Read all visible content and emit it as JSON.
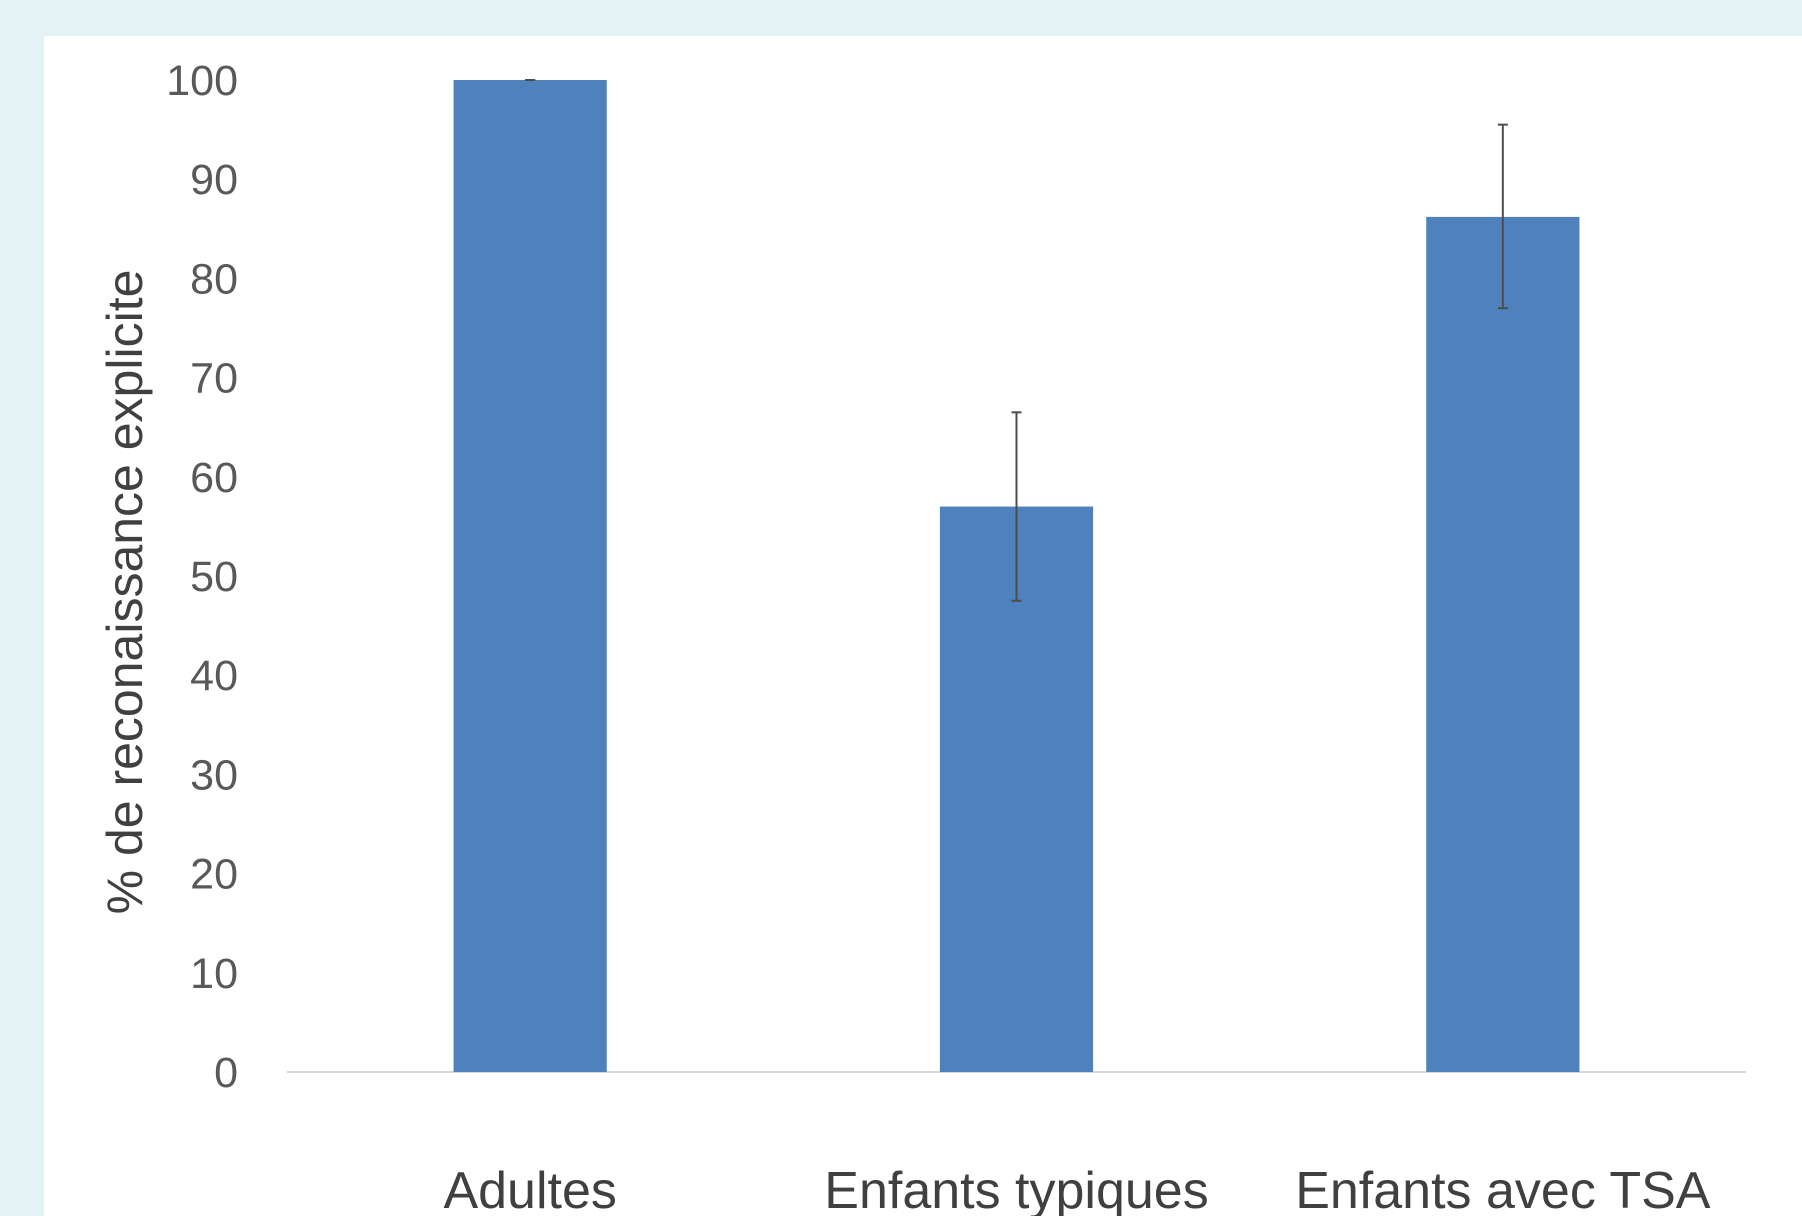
{
  "chart_data": {
    "type": "bar",
    "title": "",
    "xlabel": "",
    "ylabel": "% de reconaissance explicite",
    "categories": [
      "Adultes",
      "Enfants typiques",
      "Enfants avec TSA"
    ],
    "values": [
      100,
      57,
      86.2
    ],
    "error_bars": [
      {
        "low": 100,
        "high": 100
      },
      {
        "low": 47.5,
        "high": 66.5
      },
      {
        "low": 77,
        "high": 95.5
      }
    ],
    "ylim": [
      0,
      100
    ],
    "yticks": [
      0,
      10,
      20,
      30,
      40,
      50,
      60,
      70,
      80,
      90,
      100
    ],
    "grid": false,
    "legend": "none",
    "colors": {
      "bar": "#4f81bd",
      "error_bar": "#4d4d4d",
      "axis_line": "#d9d9d9",
      "background": "#e4f1f5",
      "panel": "#ffffff"
    }
  }
}
